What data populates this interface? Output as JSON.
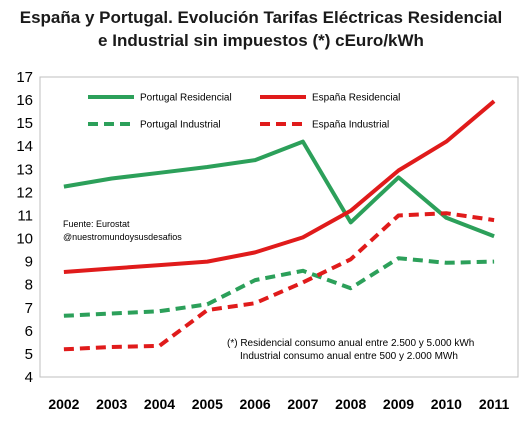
{
  "title": {
    "line1": "España y Portugal. Evolución Tarifas Eléctricas Residencial",
    "line2": "e Industrial sin impuestos (*)  cEuro/kWh"
  },
  "source": {
    "line1": "Fuente: Eurostat",
    "line2": "@nuestromundoysusdesafios"
  },
  "note": {
    "line1": "(*) Residencial consumo anual entre 2.500  y 5.000 kWh",
    "line2": "Industrial consumo anual entre 500 y  2.000 MWh"
  },
  "chart_data": {
    "type": "line",
    "title": "España y Portugal. Evolución Tarifas Eléctricas Residencial e Industrial sin impuestos (*)  cEuro/kWh",
    "xlabel": "",
    "ylabel": "",
    "categories": [
      "2002",
      "2003",
      "2004",
      "2005",
      "2006",
      "2007",
      "2008",
      "2009",
      "2010",
      "2011"
    ],
    "y_ticks": [
      "4",
      "5",
      "6",
      "7",
      "8",
      "9",
      "10",
      "11",
      "12",
      "13",
      "14",
      "15",
      "16",
      "17"
    ],
    "ylim": [
      4,
      17
    ],
    "grid": false,
    "legend_position": "top",
    "series": [
      {
        "name": "Portugal Residencial",
        "color": "#2ca05a",
        "dashed": false,
        "values": [
          12.25,
          12.6,
          12.85,
          13.1,
          13.4,
          14.2,
          10.7,
          12.65,
          10.9,
          10.1
        ]
      },
      {
        "name": "España Residencial",
        "color": "#e01b1b",
        "dashed": false,
        "values": [
          8.55,
          8.7,
          8.85,
          9.0,
          9.4,
          10.05,
          11.2,
          12.95,
          14.2,
          15.95
        ]
      },
      {
        "name": "Portugal Industrial",
        "color": "#2ca05a",
        "dashed": true,
        "values": [
          6.65,
          6.75,
          6.85,
          7.15,
          8.2,
          8.6,
          7.85,
          9.15,
          8.95,
          9.0
        ]
      },
      {
        "name": "España Industrial",
        "color": "#e01b1b",
        "dashed": true,
        "values": [
          5.2,
          5.3,
          5.35,
          6.9,
          7.2,
          8.1,
          9.1,
          11.0,
          11.1,
          10.8
        ]
      }
    ]
  }
}
